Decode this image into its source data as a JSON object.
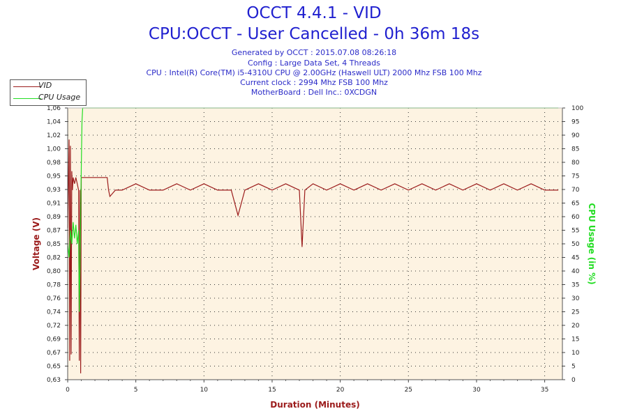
{
  "header": {
    "title_line1": "OCCT 4.4.1 - VID",
    "title_line2": "CPU:OCCT - User Cancelled - 0h 36m 18s",
    "generated": "Generated by OCCT : 2015.07.08 08:26:18",
    "config": "Config : Large Data Set, 4 Threads",
    "cpu": "CPU : Intel(R) Core(TM) i5-4310U CPU @ 2.00GHz (Haswell ULT) 2000 Mhz FSB 100 Mhz",
    "clock": "Current clock : 2994 Mhz FSB 100 Mhz",
    "motherboard": "MotherBoard : Dell Inc.: 0XCDGN"
  },
  "legend": {
    "vid_label": "VID",
    "cpu_label": "CPU Usage"
  },
  "colors": {
    "vid": "#9b1b1b",
    "cpu": "#22dd22",
    "plot_bg": "#fdf3e2",
    "title": "#1f1fcf",
    "xlabel": "#9b1b1b"
  },
  "chart_data": {
    "type": "line",
    "title": "OCCT 4.4.1 - VID",
    "xlabel": "Duration (Minutes)",
    "ylabel": "Voltage (V)",
    "y2label": "CPU Usage (in %)",
    "xlim": [
      0,
      36.3
    ],
    "ylim": [
      0.63,
      1.06
    ],
    "y2lim": [
      0,
      100
    ],
    "x_ticks": [
      0,
      5,
      10,
      15,
      20,
      25,
      30,
      35
    ],
    "y_ticks": [
      "0,63",
      "0,65",
      "0,67",
      "0,69",
      "0,72",
      "0,74",
      "0,76",
      "0,78",
      "0,80",
      "0,82",
      "0,85",
      "0,87",
      "0,89",
      "0,91",
      "0,93",
      "0,95",
      "0,98",
      "1,00",
      "1,02",
      "1,04",
      "1,06"
    ],
    "y2_ticks": [
      0,
      5,
      10,
      15,
      20,
      25,
      30,
      35,
      40,
      45,
      50,
      55,
      60,
      65,
      70,
      75,
      80,
      85,
      90,
      95,
      100
    ],
    "grid": true,
    "legend_position": "top-left",
    "series": [
      {
        "name": "VID",
        "axis": "left",
        "x": [
          0.0,
          0.1,
          0.15,
          0.2,
          0.25,
          0.3,
          0.35,
          0.4,
          0.5,
          0.6,
          0.7,
          0.8,
          0.85,
          0.9,
          0.95,
          1.0,
          1.1,
          1.3,
          1.6,
          2.0,
          2.5,
          2.9,
          3.0,
          3.1,
          3.5,
          4.0,
          5.0,
          6.0,
          7.0,
          8.0,
          9.0,
          10.0,
          11.0,
          12.0,
          12.5,
          13.0,
          14.0,
          15.0,
          16.0,
          17.0,
          17.2,
          17.4,
          18.0,
          19.0,
          20.0,
          21.0,
          22.0,
          23.0,
          24.0,
          25.0,
          26.0,
          27.0,
          28.0,
          29.0,
          30.0,
          31.0,
          32.0,
          33.0,
          34.0,
          35.0,
          36.0
        ],
        "values": [
          0.87,
          1.01,
          0.66,
          1.0,
          0.67,
          0.96,
          0.93,
          0.95,
          0.94,
          0.95,
          0.94,
          0.93,
          0.66,
          0.93,
          0.64,
          0.95,
          0.95,
          0.95,
          0.95,
          0.95,
          0.95,
          0.95,
          0.93,
          0.92,
          0.93,
          0.93,
          0.94,
          0.93,
          0.93,
          0.94,
          0.93,
          0.94,
          0.93,
          0.93,
          0.89,
          0.93,
          0.94,
          0.93,
          0.94,
          0.93,
          0.84,
          0.93,
          0.94,
          0.93,
          0.94,
          0.93,
          0.94,
          0.93,
          0.94,
          0.93,
          0.94,
          0.93,
          0.94,
          0.93,
          0.94,
          0.93,
          0.94,
          0.93,
          0.94,
          0.93,
          0.93
        ]
      },
      {
        "name": "CPU Usage",
        "axis": "right",
        "x": [
          0.0,
          0.1,
          0.2,
          0.3,
          0.4,
          0.5,
          0.6,
          0.7,
          0.8,
          0.85,
          0.9,
          1.0,
          1.05,
          1.1,
          2.0,
          5.0,
          10.0,
          15.0,
          20.0,
          25.0,
          30.0,
          35.0,
          36.0
        ],
        "values": [
          50,
          45,
          55,
          50,
          58,
          52,
          57,
          50,
          55,
          25,
          40,
          78,
          95,
          100,
          100,
          100,
          100,
          100,
          100,
          100,
          100,
          100,
          100
        ]
      }
    ]
  }
}
